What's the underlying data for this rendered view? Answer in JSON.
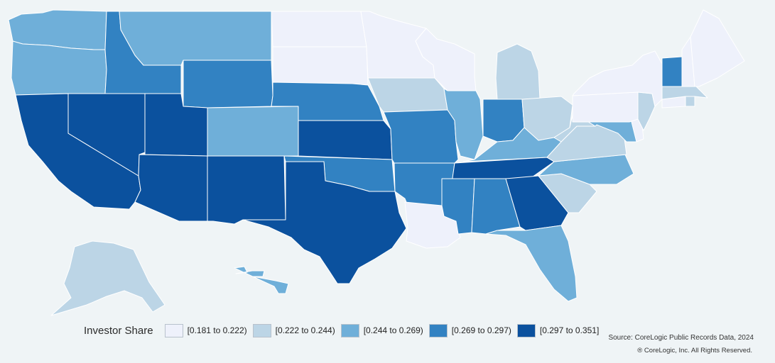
{
  "legend": {
    "title": "Investor Share",
    "bins": [
      {
        "label": "[0.181 to 0.222)",
        "color": "#eef1fb"
      },
      {
        "label": "[0.222 to 0.244)",
        "color": "#bcd5e6"
      },
      {
        "label": "[0.244 to 0.269)",
        "color": "#6fafd9"
      },
      {
        "label": "[0.269 to 0.297)",
        "color": "#3282c2"
      },
      {
        "label": "[0.297 to 0.351]",
        "color": "#0b519e"
      }
    ]
  },
  "source": "Source: CoreLogic Public Records Data, 2024",
  "copyright": "® CoreLogic, Inc. All Rights Reserved.",
  "states": [
    {
      "name": "WA",
      "bin": 2
    },
    {
      "name": "OR",
      "bin": 2
    },
    {
      "name": "CA",
      "bin": 4
    },
    {
      "name": "NV",
      "bin": 4
    },
    {
      "name": "ID",
      "bin": 3
    },
    {
      "name": "MT",
      "bin": 2
    },
    {
      "name": "WY",
      "bin": 3
    },
    {
      "name": "UT",
      "bin": 4
    },
    {
      "name": "CO",
      "bin": 2
    },
    {
      "name": "AZ",
      "bin": 4
    },
    {
      "name": "NM",
      "bin": 4
    },
    {
      "name": "ND",
      "bin": 0
    },
    {
      "name": "SD",
      "bin": 0
    },
    {
      "name": "NE",
      "bin": 3
    },
    {
      "name": "KS",
      "bin": 4
    },
    {
      "name": "OK",
      "bin": 3
    },
    {
      "name": "TX",
      "bin": 4
    },
    {
      "name": "MN",
      "bin": 0
    },
    {
      "name": "IA",
      "bin": 1
    },
    {
      "name": "MO",
      "bin": 3
    },
    {
      "name": "AR",
      "bin": 3
    },
    {
      "name": "LA",
      "bin": 0
    },
    {
      "name": "WI",
      "bin": 0
    },
    {
      "name": "IL",
      "bin": 2
    },
    {
      "name": "MI",
      "bin": 1
    },
    {
      "name": "IN",
      "bin": 3
    },
    {
      "name": "OH",
      "bin": 1
    },
    {
      "name": "KY",
      "bin": 2
    },
    {
      "name": "TN",
      "bin": 4
    },
    {
      "name": "MS",
      "bin": 3
    },
    {
      "name": "AL",
      "bin": 3
    },
    {
      "name": "GA",
      "bin": 4
    },
    {
      "name": "FL",
      "bin": 2
    },
    {
      "name": "SC",
      "bin": 1
    },
    {
      "name": "NC",
      "bin": 2
    },
    {
      "name": "VA",
      "bin": 1
    },
    {
      "name": "WV",
      "bin": 1
    },
    {
      "name": "MD",
      "bin": 2
    },
    {
      "name": "DE",
      "bin": 0
    },
    {
      "name": "NJ",
      "bin": 1
    },
    {
      "name": "PA",
      "bin": 0
    },
    {
      "name": "NY",
      "bin": 0
    },
    {
      "name": "CT",
      "bin": 0
    },
    {
      "name": "RI",
      "bin": 1
    },
    {
      "name": "MA",
      "bin": 1
    },
    {
      "name": "VT",
      "bin": 3
    },
    {
      "name": "NH",
      "bin": 0
    },
    {
      "name": "ME",
      "bin": 0
    },
    {
      "name": "AK",
      "bin": 1
    },
    {
      "name": "HI",
      "bin": 2
    }
  ]
}
